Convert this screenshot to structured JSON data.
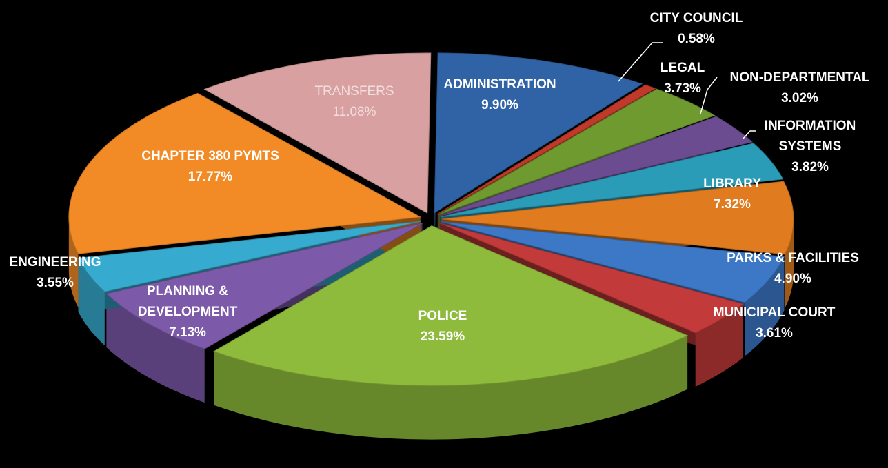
{
  "chart_data": {
    "type": "pie",
    "categories": [
      "ADMINISTRATION",
      "CITY COUNCIL",
      "LEGAL",
      "NON-DEPARTMENTAL",
      "INFORMATION SYSTEMS",
      "LIBRARY",
      "PARKS & FACILITIES",
      "MUNICIPAL COURT",
      "POLICE",
      "PLANNING & DEVELOPMENT",
      "ENGINEERING",
      "CHAPTER 380 PYMTS",
      "TRANSFERS"
    ],
    "values": [
      9.9,
      0.58,
      3.73,
      3.02,
      3.82,
      7.32,
      4.9,
      3.61,
      23.59,
      7.13,
      3.55,
      17.77,
      11.08
    ],
    "value_labels": [
      "9.90%",
      "0.58%",
      "3.73%",
      "3.02%",
      "3.82%",
      "7.32%",
      "4.90%",
      "3.61%",
      "23.59%",
      "7.13%",
      "3.55%",
      "17.77%",
      "11.08%"
    ],
    "colors": [
      "#2f63a6",
      "#c0392b",
      "#6e9a30",
      "#6b4c91",
      "#2b9cb8",
      "#e07c1f",
      "#3c78c6",
      "#c23a3a",
      "#8fbb3c",
      "#7d59aa",
      "#37abcf",
      "#f28b25",
      "#d8a0a0"
    ]
  }
}
